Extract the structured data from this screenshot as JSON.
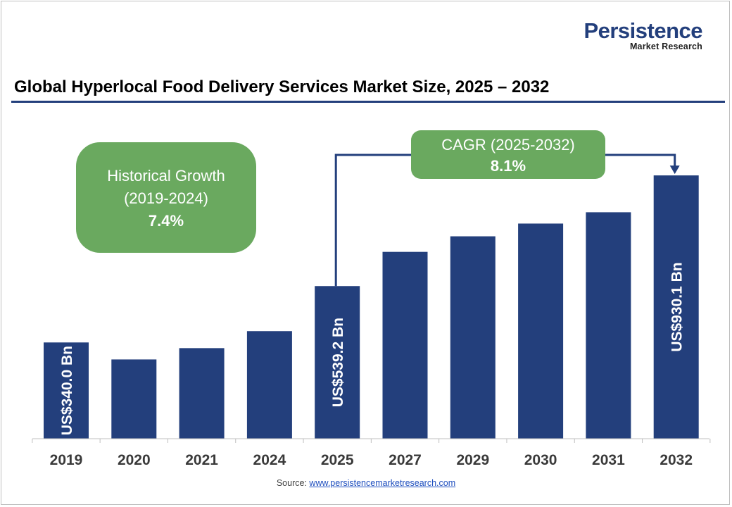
{
  "logo": {
    "main": "Persistence",
    "sub": "Market Research"
  },
  "title": "Global Hyperlocal Food Delivery Services Market Size, 2025 – 2032",
  "colors": {
    "bar": "#233f7c",
    "callout": "#6aa95f",
    "axis": "#bfbfbf"
  },
  "callouts": {
    "historical": {
      "line1": "Historical Growth",
      "line2": "(2019-2024)",
      "value": "7.4%"
    },
    "cagr": {
      "line1": "CAGR (2025-2032)",
      "value": "8.1%"
    }
  },
  "source": {
    "label": "Source:",
    "link": "www.persistencemarketresearch.com"
  },
  "chart_data": {
    "type": "bar",
    "title": "Global Hyperlocal Food Delivery Services Market Size, 2025 – 2032",
    "categories": [
      "2019",
      "2020",
      "2021",
      "2024",
      "2025",
      "2027",
      "2029",
      "2030",
      "2031",
      "2032"
    ],
    "values": [
      340.0,
      280.0,
      320.0,
      380.0,
      539.2,
      660.0,
      715.0,
      760.0,
      800.0,
      930.1
    ],
    "data_labels": [
      {
        "index": 0,
        "text": "US$340.0 Bn"
      },
      {
        "index": 4,
        "text": "US$539.2 Bn"
      },
      {
        "index": 9,
        "text": "US$930.1 Bn"
      }
    ],
    "ylim": [
      0,
      1000
    ],
    "grid": false,
    "legend": "none",
    "xlabel": "",
    "ylabel": ""
  }
}
